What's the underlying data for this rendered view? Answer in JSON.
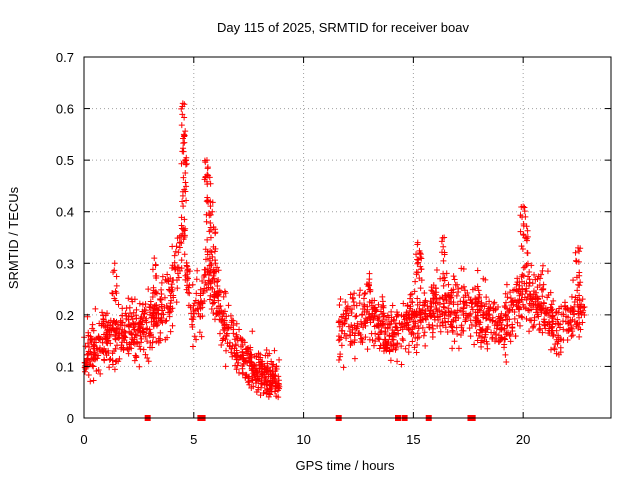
{
  "chart_data": {
    "type": "scatter",
    "title": "Day 115 of 2025, SRMTID for receiver boav",
    "xlabel": "GPS time / hours",
    "ylabel": "SRMTID / TECUs",
    "xlim": [
      0,
      24
    ],
    "ylim": [
      0,
      0.7
    ],
    "x_ticks": [
      0,
      5,
      10,
      15,
      20
    ],
    "y_ticks": [
      0,
      0.1,
      0.2,
      0.3,
      0.4,
      0.5,
      0.6,
      0.7
    ],
    "x_tick_labels": [
      "0",
      "5",
      "10",
      "15",
      "20"
    ],
    "y_tick_labels": [
      "0",
      "0.1",
      "0.2",
      "0.3",
      "0.4",
      "0.5",
      "0.6",
      "0.7"
    ],
    "grid": true,
    "marker": "+",
    "series_color": "#ff0000",
    "profile": [
      [
        0.0,
        0.12
      ],
      [
        0.5,
        0.14
      ],
      [
        1.0,
        0.15
      ],
      [
        1.5,
        0.16
      ],
      [
        2.0,
        0.17
      ],
      [
        2.5,
        0.17
      ],
      [
        3.0,
        0.18
      ],
      [
        3.5,
        0.21
      ],
      [
        4.0,
        0.25
      ],
      [
        4.3,
        0.3
      ],
      [
        4.5,
        0.38
      ],
      [
        4.8,
        0.25
      ],
      [
        5.0,
        0.2
      ],
      [
        5.3,
        0.22
      ],
      [
        5.6,
        0.3
      ],
      [
        6.0,
        0.24
      ],
      [
        6.5,
        0.17
      ],
      [
        7.0,
        0.13
      ],
      [
        7.5,
        0.11
      ],
      [
        8.0,
        0.09
      ],
      [
        8.5,
        0.08
      ],
      [
        8.9,
        0.07
      ]
    ],
    "profile2": [
      [
        11.6,
        0.17
      ],
      [
        12.0,
        0.18
      ],
      [
        12.5,
        0.19
      ],
      [
        13.0,
        0.2
      ],
      [
        13.5,
        0.18
      ],
      [
        14.0,
        0.16
      ],
      [
        14.5,
        0.17
      ],
      [
        15.0,
        0.19
      ],
      [
        15.5,
        0.2
      ],
      [
        16.0,
        0.22
      ],
      [
        16.5,
        0.22
      ],
      [
        17.0,
        0.21
      ],
      [
        17.5,
        0.22
      ],
      [
        18.0,
        0.2
      ],
      [
        18.5,
        0.19
      ],
      [
        19.0,
        0.18
      ],
      [
        19.5,
        0.2
      ],
      [
        20.0,
        0.25
      ],
      [
        20.5,
        0.23
      ],
      [
        21.0,
        0.21
      ],
      [
        21.5,
        0.17
      ],
      [
        22.0,
        0.18
      ],
      [
        22.5,
        0.21
      ],
      [
        22.8,
        0.22
      ]
    ],
    "peaks": [
      {
        "x": 4.5,
        "y": 0.61
      },
      {
        "x": 4.55,
        "y": 0.55
      },
      {
        "x": 4.6,
        "y": 0.5
      },
      {
        "x": 5.6,
        "y": 0.5
      },
      {
        "x": 5.65,
        "y": 0.47
      },
      {
        "x": 5.75,
        "y": 0.42
      },
      {
        "x": 5.9,
        "y": 0.37
      },
      {
        "x": 20.0,
        "y": 0.41
      },
      {
        "x": 20.1,
        "y": 0.39
      },
      {
        "x": 16.4,
        "y": 0.35
      },
      {
        "x": 15.2,
        "y": 0.34
      },
      {
        "x": 15.3,
        "y": 0.32
      },
      {
        "x": 13.0,
        "y": 0.28
      },
      {
        "x": 22.5,
        "y": 0.33
      },
      {
        "x": 1.4,
        "y": 0.3
      },
      {
        "x": 3.2,
        "y": 0.31
      }
    ],
    "zero_markers": [
      2.9,
      5.3,
      5.4,
      11.6,
      14.3,
      14.6,
      15.7,
      17.6,
      17.7
    ]
  }
}
